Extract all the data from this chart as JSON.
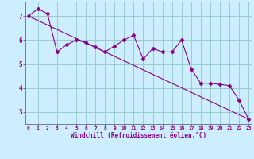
{
  "xlabel": "Windchill (Refroidissement éolien,°C)",
  "ylabel": "",
  "bg_color": "#cceeff",
  "line_color": "#880088",
  "grid_color": "#99cccc",
  "axis_color": "#666688",
  "tick_label_color": "#880088",
  "xlabel_color": "#880088",
  "xlim_min": -0.3,
  "xlim_max": 23.3,
  "ylim_min": 2.5,
  "ylim_max": 7.6,
  "yticks": [
    3,
    4,
    5,
    6,
    7
  ],
  "xticks": [
    0,
    1,
    2,
    3,
    4,
    5,
    6,
    7,
    8,
    9,
    10,
    11,
    12,
    13,
    14,
    15,
    16,
    17,
    18,
    19,
    20,
    21,
    22,
    23
  ],
  "data_x": [
    0,
    1,
    2,
    3,
    4,
    5,
    6,
    7,
    8,
    9,
    10,
    11,
    12,
    13,
    14,
    15,
    16,
    17,
    18,
    19,
    20,
    21,
    22,
    23
  ],
  "data_y": [
    7.0,
    7.3,
    7.1,
    5.5,
    5.8,
    6.0,
    5.9,
    5.7,
    5.5,
    5.75,
    6.0,
    6.2,
    5.2,
    5.65,
    5.5,
    5.5,
    6.0,
    4.8,
    4.2,
    4.2,
    4.15,
    4.1,
    3.5,
    2.7
  ],
  "trend_x": [
    0,
    23
  ],
  "trend_y": [
    7.0,
    2.7
  ],
  "markersize": 2.5,
  "linewidth": 0.8
}
